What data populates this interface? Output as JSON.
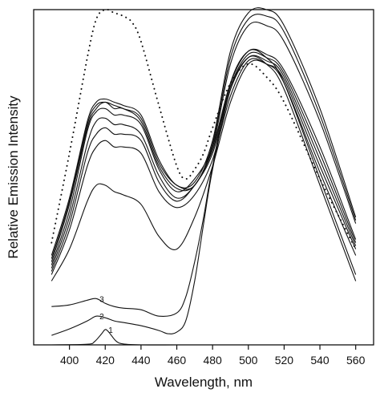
{
  "chart_data": {
    "type": "line",
    "title": "",
    "xlabel": "Wavelength, nm",
    "ylabel": "Relative Emission Intensity",
    "xlim": [
      380,
      570
    ],
    "ylim": [
      0,
      1.05
    ],
    "xticks": [
      400,
      420,
      440,
      460,
      480,
      500,
      520,
      540,
      560
    ],
    "grid": false,
    "legend": "none",
    "series": [
      {
        "id": "trace-1",
        "label": "1",
        "style": "solid",
        "x": [
          390,
          410,
          414,
          418,
          420,
          422,
          426,
          430,
          440,
          460,
          480,
          500,
          520,
          540,
          560
        ],
        "y": [
          0,
          0.002,
          0.01,
          0.035,
          0.048,
          0.04,
          0.012,
          0.003,
          0,
          0,
          0,
          0,
          0,
          0,
          0
        ]
      },
      {
        "id": "trace-2",
        "label": "2",
        "style": "solid",
        "x": [
          390,
          400,
          410,
          415,
          420,
          425,
          430,
          440,
          450,
          455,
          460,
          465,
          470,
          475,
          480,
          490,
          500,
          510,
          520,
          540,
          560
        ],
        "y": [
          0.03,
          0.05,
          0.075,
          0.09,
          0.085,
          0.075,
          0.07,
          0.06,
          0.045,
          0.035,
          0.04,
          0.075,
          0.2,
          0.38,
          0.55,
          0.8,
          0.9,
          0.88,
          0.8,
          0.5,
          0.2
        ]
      },
      {
        "id": "trace-3",
        "label": "3",
        "style": "solid",
        "x": [
          390,
          400,
          410,
          415,
          420,
          425,
          430,
          440,
          450,
          460,
          465,
          470,
          475,
          480,
          490,
          500,
          510,
          520,
          540,
          560
        ],
        "y": [
          0.12,
          0.125,
          0.14,
          0.145,
          0.13,
          0.12,
          0.115,
          0.11,
          0.09,
          0.1,
          0.15,
          0.26,
          0.4,
          0.56,
          0.82,
          0.92,
          0.9,
          0.82,
          0.52,
          0.22
        ]
      },
      {
        "id": "trace-4",
        "label": "",
        "style": "solid",
        "x": [
          390,
          400,
          410,
          415,
          420,
          425,
          430,
          440,
          450,
          460,
          470,
          480,
          490,
          500,
          510,
          520,
          540,
          560
        ],
        "y": [
          0.2,
          0.3,
          0.45,
          0.5,
          0.5,
          0.48,
          0.47,
          0.44,
          0.34,
          0.3,
          0.4,
          0.56,
          0.76,
          0.88,
          0.88,
          0.82,
          0.54,
          0.28
        ]
      },
      {
        "id": "trace-5",
        "label": "",
        "style": "solid",
        "x": [
          390,
          400,
          410,
          415,
          420,
          425,
          430,
          440,
          450,
          460,
          470,
          480,
          490,
          500,
          510,
          520,
          540,
          560
        ],
        "y": [
          0.22,
          0.36,
          0.56,
          0.62,
          0.64,
          0.62,
          0.62,
          0.6,
          0.48,
          0.43,
          0.47,
          0.58,
          0.78,
          0.89,
          0.88,
          0.83,
          0.56,
          0.3
        ]
      },
      {
        "id": "trace-6",
        "label": "",
        "style": "solid",
        "x": [
          390,
          400,
          410,
          415,
          420,
          425,
          430,
          440,
          450,
          460,
          470,
          480,
          490,
          500,
          510,
          520,
          540,
          560
        ],
        "y": [
          0.23,
          0.38,
          0.6,
          0.66,
          0.68,
          0.66,
          0.66,
          0.64,
          0.51,
          0.45,
          0.5,
          0.6,
          0.8,
          0.9,
          0.89,
          0.84,
          0.58,
          0.31
        ]
      },
      {
        "id": "trace-7",
        "label": "",
        "style": "solid",
        "x": [
          390,
          400,
          410,
          415,
          420,
          425,
          430,
          440,
          450,
          460,
          470,
          480,
          490,
          500,
          510,
          520,
          540,
          560
        ],
        "y": [
          0.24,
          0.4,
          0.63,
          0.7,
          0.71,
          0.69,
          0.69,
          0.66,
          0.53,
          0.46,
          0.5,
          0.61,
          0.81,
          0.91,
          0.9,
          0.85,
          0.6,
          0.32
        ]
      },
      {
        "id": "trace-8",
        "label": "",
        "style": "solid",
        "x": [
          390,
          400,
          410,
          415,
          420,
          425,
          430,
          440,
          450,
          460,
          470,
          480,
          490,
          500,
          510,
          520,
          540,
          560
        ],
        "y": [
          0.25,
          0.42,
          0.67,
          0.73,
          0.74,
          0.72,
          0.72,
          0.69,
          0.55,
          0.48,
          0.52,
          0.62,
          0.82,
          0.92,
          0.91,
          0.86,
          0.62,
          0.33
        ]
      },
      {
        "id": "trace-9",
        "label": "",
        "style": "solid",
        "x": [
          390,
          400,
          410,
          415,
          420,
          425,
          430,
          440,
          450,
          460,
          470,
          480,
          490,
          500,
          510,
          520,
          540,
          560
        ],
        "y": [
          0.26,
          0.44,
          0.68,
          0.74,
          0.76,
          0.74,
          0.74,
          0.7,
          0.56,
          0.49,
          0.5,
          0.62,
          0.88,
          1.0,
          1.0,
          0.95,
          0.7,
          0.38
        ]
      },
      {
        "id": "trace-10",
        "label": "",
        "style": "solid",
        "x": [
          390,
          400,
          410,
          415,
          420,
          425,
          430,
          440,
          450,
          460,
          470,
          480,
          490,
          500,
          510,
          520,
          540,
          560
        ],
        "y": [
          0.27,
          0.45,
          0.69,
          0.75,
          0.76,
          0.75,
          0.74,
          0.71,
          0.57,
          0.5,
          0.5,
          0.63,
          0.9,
          1.02,
          1.03,
          0.98,
          0.72,
          0.39
        ]
      },
      {
        "id": "trace-11",
        "label": "",
        "style": "solid",
        "x": [
          390,
          400,
          410,
          415,
          420,
          425,
          430,
          440,
          450,
          460,
          470,
          480,
          490,
          500,
          510,
          520,
          540,
          560
        ],
        "y": [
          0.28,
          0.46,
          0.7,
          0.76,
          0.77,
          0.76,
          0.75,
          0.72,
          0.58,
          0.5,
          0.51,
          0.64,
          0.92,
          1.04,
          1.05,
          1.0,
          0.74,
          0.4
        ]
      },
      {
        "id": "trace-dotted",
        "label": "",
        "style": "dotted",
        "x": [
          390,
          400,
          410,
          415,
          420,
          425,
          430,
          435,
          440,
          450,
          460,
          465,
          470,
          475,
          480,
          490,
          500,
          510,
          520,
          540,
          560
        ],
        "y": [
          0.32,
          0.6,
          0.9,
          1.02,
          1.05,
          1.04,
          1.03,
          1.01,
          0.95,
          0.75,
          0.56,
          0.52,
          0.55,
          0.6,
          0.68,
          0.82,
          0.88,
          0.84,
          0.76,
          0.52,
          0.3
        ]
      }
    ],
    "annotations": [
      {
        "text": "1",
        "series": "trace-1"
      },
      {
        "text": "2",
        "series": "trace-2"
      },
      {
        "text": "3",
        "series": "trace-3"
      }
    ]
  }
}
